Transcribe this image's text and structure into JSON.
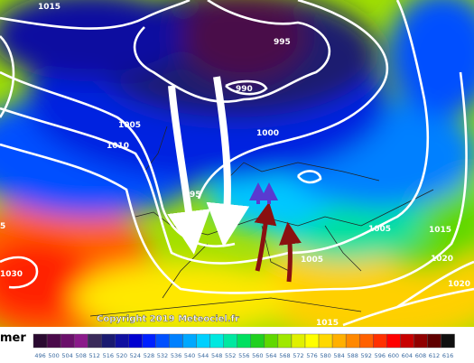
{
  "isobar_labels": [
    "1015",
    "995",
    "990",
    "1005",
    "1010",
    "1000",
    "95",
    "1005",
    "1005",
    "1015",
    "1020",
    "1020",
    "1030",
    "5",
    "1015"
  ],
  "copyright": "Copyright 2019 Meteociel.fr",
  "legend": {
    "title": "mer",
    "ticks": [
      496,
      500,
      504,
      508,
      512,
      516,
      520,
      524,
      528,
      532,
      536,
      540,
      544,
      548,
      552,
      556,
      560,
      564,
      568,
      572,
      576,
      580,
      584,
      588,
      592,
      596,
      600,
      604,
      608,
      612,
      616
    ],
    "colors": [
      "#2a0a30",
      "#4a0a4a",
      "#6a106a",
      "#8a1a8a",
      "#3a2a5a",
      "#1a1a70",
      "#1010a0",
      "#0000d0",
      "#0020ff",
      "#0050ff",
      "#0080ff",
      "#00a8ff",
      "#00d0ff",
      "#00e8e0",
      "#00e8a0",
      "#00e060",
      "#20d020",
      "#60d800",
      "#a0e800",
      "#e0f000",
      "#ffff00",
      "#ffd800",
      "#ffb000",
      "#ff8800",
      "#ff6000",
      "#ff3000",
      "#ff0000",
      "#c80000",
      "#900000",
      "#600000",
      "#101010"
    ]
  }
}
